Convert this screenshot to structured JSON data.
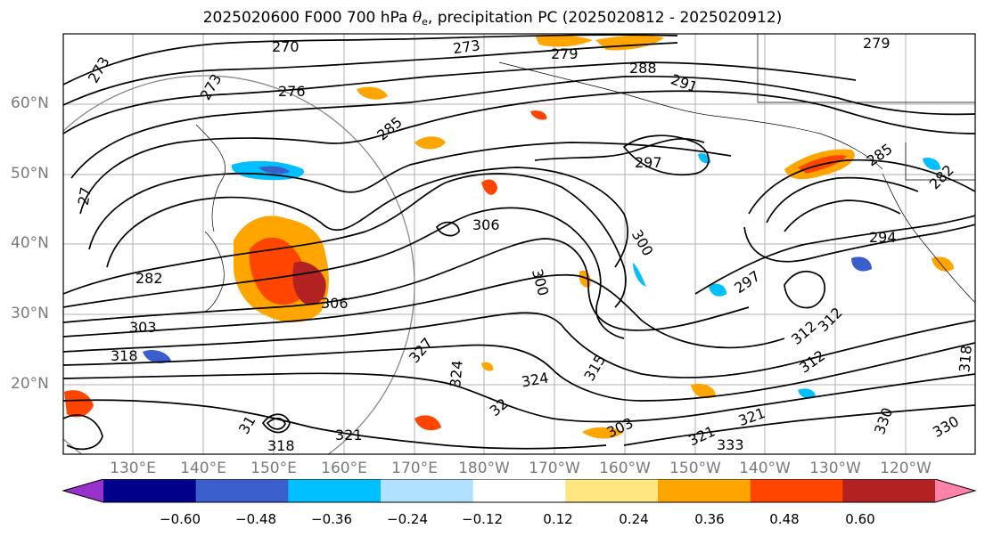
{
  "title": {
    "prefix": "2025020600 F000 700 hPa ",
    "theta": "θ",
    "theta_sub": "e",
    "suffix": ", precipitation PC (2025020812 - 2025020912)"
  },
  "lat_labels": [
    "60°N",
    "50°N",
    "40°N",
    "30°N",
    "20°N"
  ],
  "lon_labels": [
    "130°E",
    "140°E",
    "150°E",
    "160°E",
    "170°E",
    "180°W",
    "170°W",
    "160°W",
    "150°W",
    "140°W",
    "130°W",
    "120°W"
  ],
  "contour_labels": [
    "270",
    "273",
    "273",
    "279",
    "279",
    "288",
    "276",
    "291",
    "285",
    "297",
    "285",
    "282",
    "273",
    "27",
    "294",
    "282",
    "306",
    "306",
    "300",
    "300",
    "297",
    "303",
    "318",
    "327",
    "324",
    "32",
    "324",
    "312",
    "312",
    "315",
    "312",
    "321",
    "330",
    "330",
    "318",
    "321",
    "333",
    "318",
    "321",
    "31",
    "303"
  ],
  "colorbar": {
    "ticks": [
      "−0.60",
      "−0.48",
      "−0.36",
      "−0.24",
      "−0.12",
      "0.12",
      "0.24",
      "0.36",
      "0.48",
      "0.60"
    ],
    "colors": [
      "#9932cc",
      "#00008b",
      "#3a5fcd",
      "#00bfff",
      "#b0e2ff",
      "#ffffff",
      "#ffe680",
      "#ffa500",
      "#ff4500",
      "#b22222",
      "#ff82ab"
    ]
  }
}
